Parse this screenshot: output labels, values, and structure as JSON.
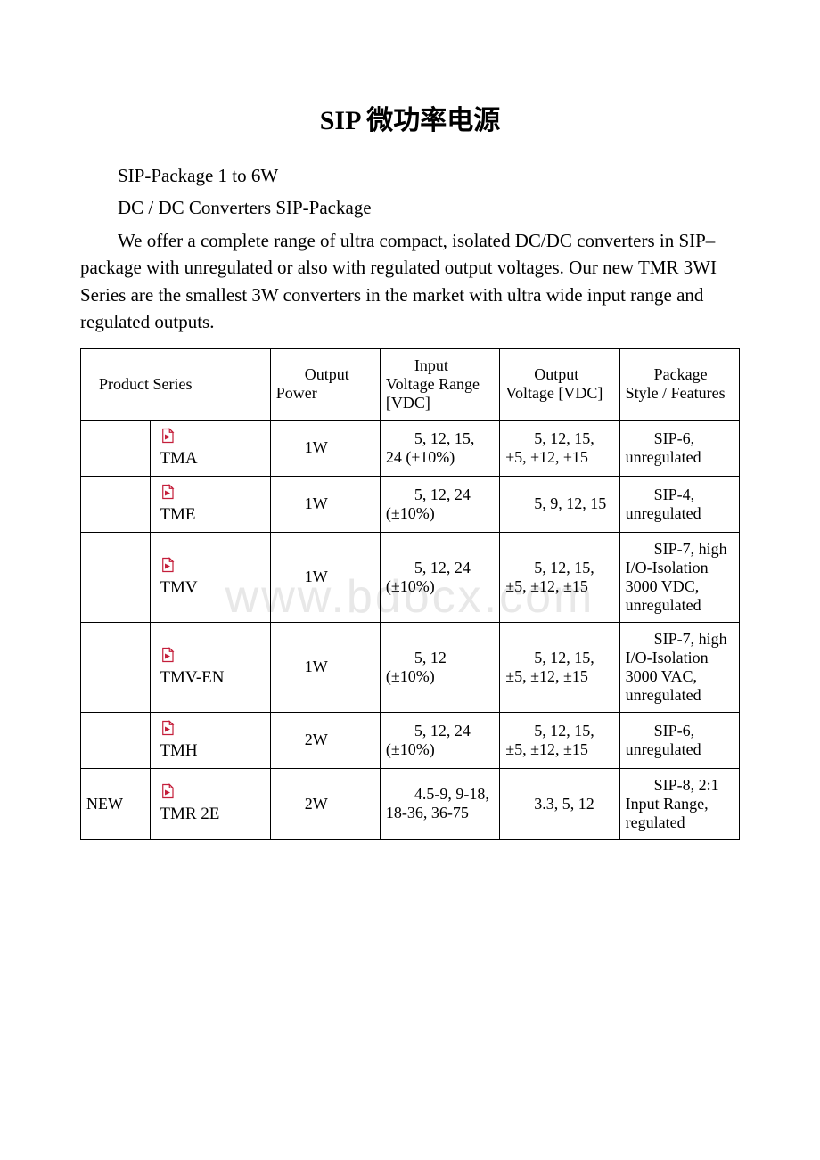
{
  "title": "SIP 微功率电源",
  "subtitle1": "SIP-Package 1 to 6W",
  "subtitle2": "DC / DC Converters SIP-Package",
  "intro": "We offer a complete range of ultra compact, isolated DC/DC converters in SIP–package with unregulated or also with regulated output voltages. Our new TMR 3WI Series are the smallest 3W converters in the market with ultra wide input range and regulated outputs.",
  "watermark": "www.bdocx.com",
  "table": {
    "columns": {
      "series": "Product Series",
      "power": "Output Power",
      "input": "Input Voltage Range [VDC]",
      "output": "Output Voltage [VDC]",
      "features": "Package Style / Features"
    },
    "pdf_icon_color_fill": "#ffffff",
    "pdf_icon_color_stroke": "#c41e3a",
    "pdf_icon_triangle": "#c41e3a",
    "rows": [
      {
        "flag": "",
        "series": "TMA",
        "power": "1W",
        "input": "5, 12, 15, 24 (±10%)",
        "output": "5, 12, 15, ±5, ±12, ±15",
        "features": "SIP-6, unregulated"
      },
      {
        "flag": "",
        "series": "TME",
        "power": "1W",
        "input": "5, 12, 24 (±10%)",
        "output": "5, 9, 12, 15",
        "features": "SIP-4, unregulated"
      },
      {
        "flag": "",
        "series": "TMV",
        "power": "1W",
        "input": "5, 12, 24 (±10%)",
        "output": "5, 12, 15, ±5, ±12, ±15",
        "features": "SIP-7, high I/O-Isolation 3000 VDC, unregulated"
      },
      {
        "flag": "",
        "series": "TMV-EN",
        "power": "1W",
        "input": "5, 12 (±10%)",
        "output": "5, 12, 15, ±5, ±12, ±15",
        "features": "SIP-7, high I/O-Isolation 3000 VAC, unregulated"
      },
      {
        "flag": "",
        "series": "TMH",
        "power": "2W",
        "input": "5, 12, 24 (±10%)",
        "output": "5, 12, 15, ±5, ±12, ±15",
        "features": "SIP-6, unregulated"
      },
      {
        "flag": "NEW",
        "series": "TMR 2E",
        "power": "2W",
        "input": "4.5-9, 9-18, 18-36, 36-75",
        "output": "3.3, 5, 12",
        "features": "SIP-8, 2:1 Input Range, regulated"
      }
    ]
  }
}
